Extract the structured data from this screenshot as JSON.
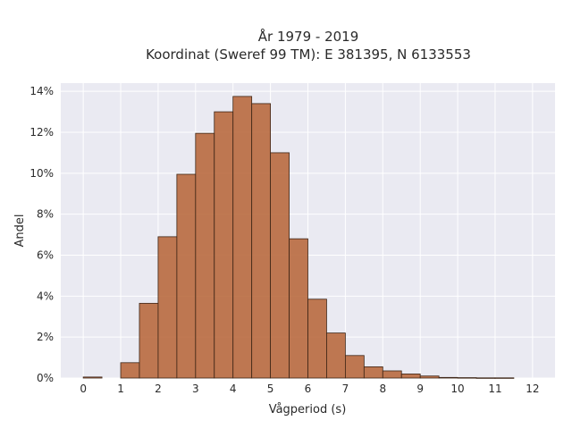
{
  "chart_data": {
    "type": "bar",
    "title_line1": "År 1979 - 2019",
    "title_line2": "Koordinat (Sweref 99 TM): E 381395, N 6133553",
    "xlabel": "Vågperiod (s)",
    "ylabel": "Andel",
    "xlim": [
      -0.6,
      12.6
    ],
    "ylim": [
      0,
      14.4
    ],
    "x_ticks": [
      0,
      1,
      2,
      3,
      4,
      5,
      6,
      7,
      8,
      9,
      10,
      11,
      12
    ],
    "y_ticks": [
      0,
      2,
      4,
      6,
      8,
      10,
      12,
      14
    ],
    "y_tick_labels": [
      "0%",
      "2%",
      "4%",
      "6%",
      "8%",
      "10%",
      "12%",
      "14%"
    ],
    "grid": true,
    "bin_width": 0.5,
    "bin_starts": [
      0,
      0.5,
      1,
      1.5,
      2,
      2.5,
      3,
      3.5,
      4,
      4.5,
      5,
      5.5,
      6,
      6.5,
      7,
      7.5,
      8,
      8.5,
      9,
      9.5,
      10,
      10.5,
      11,
      11.5
    ],
    "values": [
      0.05,
      0,
      0.75,
      3.65,
      6.9,
      9.95,
      11.95,
      13.0,
      13.75,
      13.4,
      11.0,
      6.8,
      3.85,
      2.2,
      1.1,
      0.55,
      0.35,
      0.2,
      0.1,
      0.03,
      0.02,
      0.01,
      0.01,
      0
    ],
    "bar_color": "#b96a3f",
    "background_color": "#eaeaf2"
  }
}
